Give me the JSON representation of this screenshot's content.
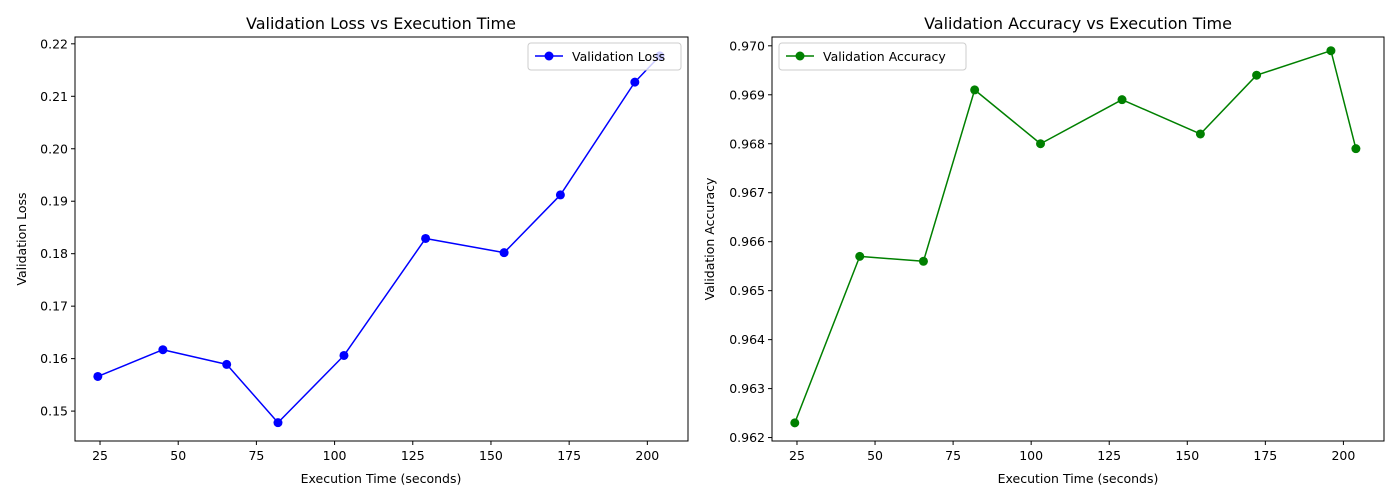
{
  "chart_data": [
    {
      "type": "line",
      "title": "Validation Loss vs Execution Time",
      "xlabel": "Execution Time (seconds)",
      "ylabel": "Validation Loss",
      "xlim": [
        17,
        213
      ],
      "ylim": [
        0.1443,
        0.2213
      ],
      "xticks": [
        25,
        50,
        75,
        100,
        125,
        150,
        175,
        200
      ],
      "yticks": [
        0.15,
        0.16,
        0.17,
        0.18,
        0.19,
        0.2,
        0.21,
        0.22
      ],
      "ytick_labels": [
        "0.15",
        "0.16",
        "0.17",
        "0.18",
        "0.19",
        "0.20",
        "0.21",
        "0.22"
      ],
      "grid": false,
      "legend_position": "upper right",
      "series": [
        {
          "name": "Validation Loss",
          "color": "#0000ff",
          "marker": "circle",
          "x": [
            24.3,
            45.1,
            65.5,
            81.9,
            103.0,
            129.1,
            154.2,
            172.2,
            196.0,
            204.0
          ],
          "y": [
            0.1566,
            0.1617,
            0.1589,
            0.1478,
            0.1606,
            0.1829,
            0.1802,
            0.1912,
            0.2127,
            0.2177
          ]
        }
      ]
    },
    {
      "type": "line",
      "title": "Validation Accuracy vs Execution Time",
      "xlabel": "Execution Time (seconds)",
      "ylabel": "Validation Accuracy",
      "xlim": [
        17,
        213
      ],
      "ylim": [
        0.96193,
        0.97018
      ],
      "xticks": [
        25,
        50,
        75,
        100,
        125,
        150,
        175,
        200
      ],
      "yticks": [
        0.962,
        0.963,
        0.964,
        0.965,
        0.966,
        0.967,
        0.968,
        0.969,
        0.97
      ],
      "ytick_labels": [
        "0.962",
        "0.963",
        "0.964",
        "0.965",
        "0.966",
        "0.967",
        "0.968",
        "0.969",
        "0.970"
      ],
      "grid": false,
      "legend_position": "upper left",
      "series": [
        {
          "name": "Validation Accuracy",
          "color": "#008000",
          "marker": "circle",
          "x": [
            24.3,
            45.1,
            65.5,
            81.9,
            103.0,
            129.1,
            154.2,
            172.2,
            196.0,
            204.0
          ],
          "y": [
            0.9623,
            0.9657,
            0.9656,
            0.9691,
            0.968,
            0.9689,
            0.9682,
            0.9694,
            0.9699,
            0.9679
          ]
        }
      ]
    }
  ]
}
